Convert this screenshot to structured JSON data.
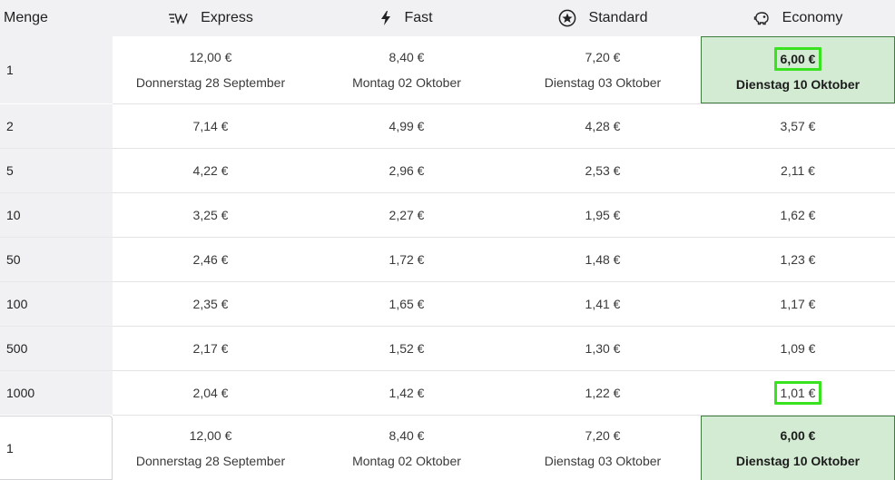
{
  "header": {
    "qty_label": "Menge",
    "columns": [
      {
        "label": "Express",
        "icon": "express-wings-icon"
      },
      {
        "label": "Fast",
        "icon": "lightning-icon"
      },
      {
        "label": "Standard",
        "icon": "star-circle-icon"
      },
      {
        "label": "Economy",
        "icon": "piggy-bank-icon"
      }
    ]
  },
  "rows": [
    {
      "qty": "1",
      "express": "12,00 €",
      "express_date": "Donnerstag 28 September",
      "fast": "8,40 €",
      "fast_date": "Montag 02 Oktober",
      "standard": "7,20 €",
      "standard_date": "Dienstag 03 Oktober",
      "economy": "6,00 €",
      "economy_date": "Dienstag 10 Oktober"
    },
    {
      "qty": "2",
      "express": "7,14 €",
      "fast": "4,99 €",
      "standard": "4,28 €",
      "economy": "3,57 €"
    },
    {
      "qty": "5",
      "express": "4,22 €",
      "fast": "2,96 €",
      "standard": "2,53 €",
      "economy": "2,11 €"
    },
    {
      "qty": "10",
      "express": "3,25 €",
      "fast": "2,27 €",
      "standard": "1,95 €",
      "economy": "1,62 €"
    },
    {
      "qty": "50",
      "express": "2,46 €",
      "fast": "1,72 €",
      "standard": "1,48 €",
      "economy": "1,23 €"
    },
    {
      "qty": "100",
      "express": "2,35 €",
      "fast": "1,65 €",
      "standard": "1,41 €",
      "economy": "1,17 €"
    },
    {
      "qty": "500",
      "express": "2,17 €",
      "fast": "1,52 €",
      "standard": "1,30 €",
      "economy": "1,09 €"
    },
    {
      "qty": "1000",
      "express": "2,04 €",
      "fast": "1,42 €",
      "standard": "1,22 €",
      "economy": "1,01 €"
    }
  ],
  "selected_row": {
    "qty": "1",
    "express": "12,00 €",
    "express_date": "Donnerstag 28 September",
    "fast": "8,40 €",
    "fast_date": "Montag 02 Oktober",
    "standard": "7,20 €",
    "standard_date": "Dienstag 03 Oktober",
    "economy": "6,00 €",
    "economy_date": "Dienstag 10 Oktober"
  },
  "colors": {
    "highlight_bg": "#d3ead3",
    "highlight_border": "#3f7d3f",
    "annotation_box": "#39e21f",
    "header_bg": "#f1f1f3"
  }
}
